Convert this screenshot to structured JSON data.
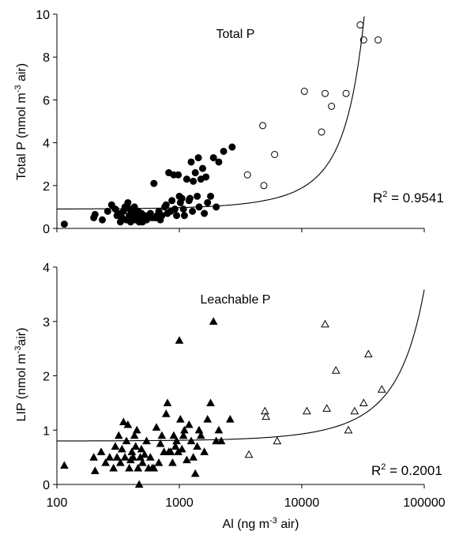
{
  "chart_data": [
    {
      "type": "scatter",
      "title": "Total P",
      "ylabel": "Total P (nmol m",
      "ylabel_sup": "-3",
      "ylabel_end": " air)",
      "xscale": "log",
      "xlim": [
        100,
        100000
      ],
      "ylim": [
        0,
        10
      ],
      "yticks": [
        0,
        2,
        4,
        6,
        8,
        10
      ],
      "r2_label": "R",
      "r2_sup": "2",
      "r2_value": " = 0.9541",
      "fit_line": {
        "a": 0.9,
        "b": 7.41e-05
      },
      "series": [
        {
          "marker": "filled-circle",
          "x": [
            115,
            200,
            205,
            235,
            260,
            280,
            300,
            310,
            320,
            330,
            340,
            350,
            360,
            370,
            380,
            390,
            395,
            400,
            410,
            420,
            430,
            440,
            450,
            460,
            470,
            480,
            490,
            500,
            510,
            520,
            540,
            560,
            580,
            600,
            620,
            640,
            660,
            680,
            700,
            720,
            760,
            780,
            800,
            820,
            850,
            870,
            900,
            920,
            950,
            980,
            1000,
            1020,
            1050,
            1080,
            1100,
            1150,
            1200,
            1220,
            1250,
            1280,
            1300,
            1350,
            1400,
            1430,
            1450,
            1500,
            1550,
            1600,
            1650,
            1700,
            1800,
            1900,
            2000,
            2100,
            2300,
            2700
          ],
          "y": [
            0.2,
            0.5,
            0.65,
            0.4,
            0.8,
            1.1,
            0.9,
            0.6,
            0.7,
            0.3,
            0.5,
            0.8,
            1.0,
            0.4,
            1.2,
            0.6,
            0.9,
            0.3,
            0.5,
            0.7,
            1.0,
            0.4,
            0.6,
            0.8,
            0.3,
            0.5,
            0.7,
            0.3,
            0.5,
            0.6,
            0.4,
            0.5,
            0.7,
            0.5,
            2.1,
            0.5,
            0.6,
            0.8,
            0.4,
            0.6,
            1.0,
            1.1,
            0.7,
            2.6,
            0.8,
            1.3,
            2.5,
            0.9,
            0.6,
            2.5,
            1.5,
            1.2,
            1.4,
            0.9,
            0.6,
            2.3,
            1.3,
            1.4,
            3.1,
            0.8,
            2.2,
            2.6,
            1.5,
            3.3,
            1.0,
            2.3,
            2.8,
            0.7,
            2.4,
            1.2,
            1.5,
            3.3,
            1.0,
            3.1,
            3.6,
            3.8
          ]
        },
        {
          "marker": "open-circle",
          "x": [
            3600,
            4800,
            4900,
            6000,
            10500,
            14500,
            15500,
            17500,
            23000,
            30000,
            32000,
            42000
          ],
          "y": [
            2.5,
            4.8,
            2.0,
            3.45,
            6.4,
            4.5,
            6.3,
            5.7,
            6.3,
            9.5,
            8.8,
            8.8
          ]
        }
      ]
    },
    {
      "type": "scatter",
      "title": "Leachable P",
      "ylabel": "LIP (nmol m",
      "ylabel_sup": "-3",
      "ylabel_end": "air)",
      "xlabel": "Al (ng m",
      "xlabel_sup": "-3",
      "xlabel_end": " air)",
      "xscale": "log",
      "xlim": [
        100,
        100000
      ],
      "ylim": [
        0,
        4
      ],
      "yticks": [
        0,
        1,
        2,
        3,
        4
      ],
      "xticks": [
        100,
        1000,
        10000,
        100000
      ],
      "xtick_labels": [
        "100",
        "1000",
        "10000",
        "100000"
      ],
      "r2_label": "R",
      "r2_sup": "2",
      "r2_value": " = 0.2001",
      "fit_line": {
        "a": 0.8,
        "b": 1.5e-05
      },
      "series": [
        {
          "marker": "filled-triangle",
          "x": [
            115,
            200,
            205,
            230,
            250,
            270,
            290,
            300,
            310,
            320,
            330,
            340,
            350,
            360,
            370,
            380,
            390,
            400,
            410,
            420,
            430,
            440,
            450,
            460,
            470,
            480,
            490,
            500,
            520,
            540,
            560,
            580,
            600,
            620,
            650,
            680,
            700,
            720,
            750,
            780,
            800,
            820,
            850,
            880,
            900,
            930,
            950,
            980,
            1000,
            1020,
            1050,
            1080,
            1100,
            1150,
            1200,
            1250,
            1300,
            1350,
            1400,
            1450,
            1500,
            1600,
            1700,
            1800,
            1900,
            2000,
            2100,
            2200,
            2600
          ],
          "y": [
            0.35,
            0.5,
            0.25,
            0.6,
            0.4,
            0.5,
            0.3,
            0.7,
            0.5,
            0.9,
            0.4,
            0.65,
            1.15,
            0.5,
            0.8,
            1.1,
            0.3,
            0.45,
            0.6,
            0.5,
            0.9,
            0.7,
            1.0,
            0.3,
            0.0,
            0.5,
            0.65,
            0.4,
            0.55,
            0.8,
            0.3,
            0.5,
            0.3,
            0.3,
            1.05,
            0.4,
            0.75,
            0.9,
            0.6,
            1.3,
            1.5,
            0.6,
            0.6,
            0.4,
            0.9,
            0.7,
            0.8,
            0.6,
            2.65,
            1.2,
            0.65,
            0.9,
            1.0,
            0.45,
            1.1,
            0.8,
            0.5,
            0.2,
            0.7,
            1.0,
            0.9,
            0.6,
            1.2,
            1.5,
            3.0,
            0.8,
            1.0,
            0.8,
            1.2
          ]
        },
        {
          "marker": "open-triangle",
          "x": [
            3700,
            5000,
            5100,
            6300,
            11000,
            15500,
            16000,
            19000,
            24000,
            27000,
            32000,
            35000,
            45000
          ],
          "y": [
            0.55,
            1.35,
            1.25,
            0.8,
            1.35,
            2.95,
            1.4,
            2.1,
            1.0,
            1.35,
            1.5,
            2.4,
            1.75
          ]
        }
      ]
    }
  ]
}
